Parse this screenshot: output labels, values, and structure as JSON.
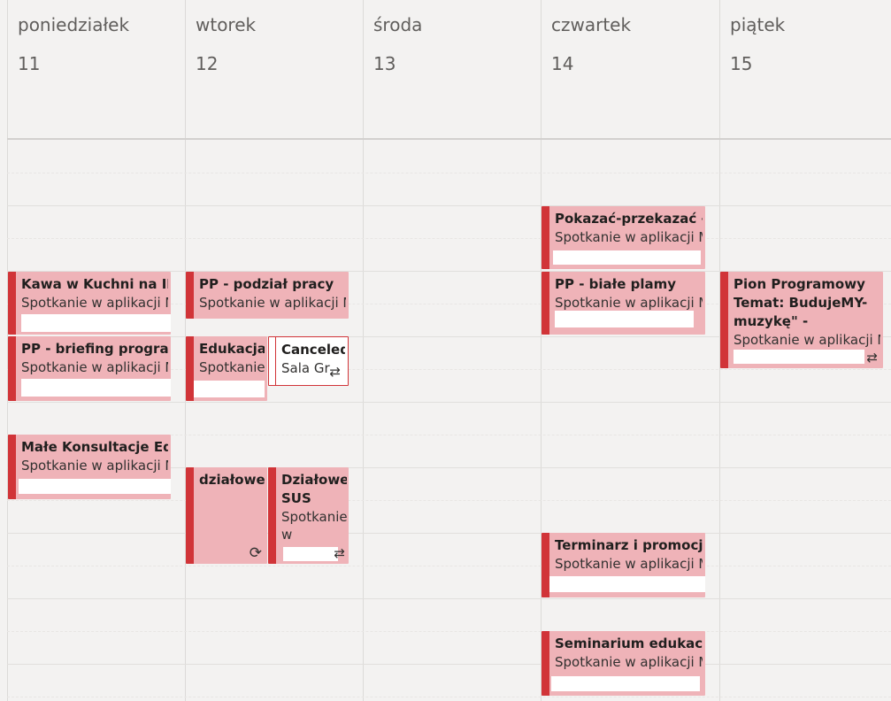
{
  "days": [
    {
      "name": "poniedziałek",
      "num": "11"
    },
    {
      "name": "wtorek",
      "num": "12"
    },
    {
      "name": "środa",
      "num": "13"
    },
    {
      "name": "czwartek",
      "num": "14"
    },
    {
      "name": "piątek",
      "num": "15"
    }
  ],
  "events": {
    "kawa": {
      "title": "Kawa w Kuchni na II p",
      "sub": "Spotkanie w aplikacji M"
    },
    "briefing": {
      "title": "PP - briefing program",
      "sub": "Spotkanie w aplikacji M"
    },
    "konsultacje": {
      "title": "Małe Konsultacje Edu",
      "sub": "Spotkanie w aplikacji M"
    },
    "podzial": {
      "title": "PP - podział pracy",
      "sub": "Spotkanie w aplikacji M"
    },
    "edukacja": {
      "title": "Edukacja",
      "sub": "Spotkanie"
    },
    "canceled": {
      "title": "Canceled",
      "sub": "Sala Gr"
    },
    "dzialowe": {
      "title": "działowe"
    },
    "dzialowe_sus": {
      "title": "Działowe SUS",
      "sub": "Spotkanie w"
    },
    "pokazac": {
      "title": "Pokazać-przekazać - u",
      "sub": "Spotkanie w aplikacji M"
    },
    "biale": {
      "title": "PP - białe plamy",
      "sub": "Spotkanie w aplikacji M"
    },
    "terminarz": {
      "title": "Terminarz i promocja",
      "sub": "Spotkanie w aplikacji M"
    },
    "seminarium": {
      "title": "Seminarium edukacyj",
      "sub": "Spotkanie w aplikacji M"
    },
    "pion": {
      "title": "Pion Programowy Temat: BudujeMY-muzykę\" -",
      "sub": "Spotkanie w aplikacji M"
    }
  },
  "icons": {
    "recurring": "⟳",
    "recurring_exception": "⇄",
    "accent_color": "#d13438",
    "event_color": "#efb3b8"
  }
}
